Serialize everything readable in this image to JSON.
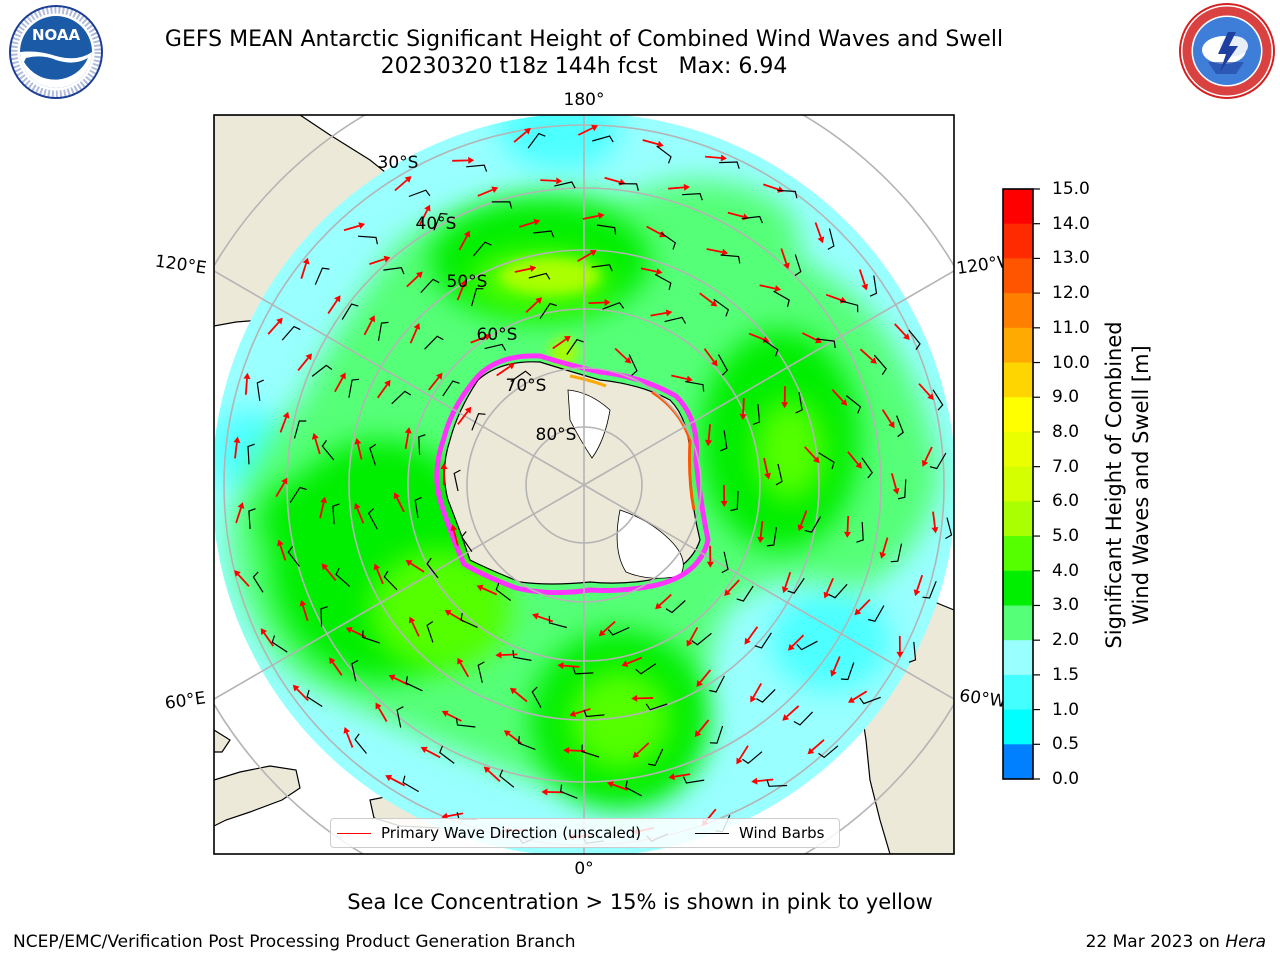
{
  "header": {
    "title_line1": "GEFS MEAN Antarctic Significant Height of Combined Wind Waves and Swell",
    "title_line2": "20230320 t18z 144h fcst   Max: 6.94"
  },
  "map": {
    "longitude_labels": {
      "top": "180°",
      "bottom": "0°",
      "upper_left": "120°E",
      "upper_right": "120°W",
      "lower_left": "60°E",
      "lower_right": "60°W"
    },
    "latitude_labels": [
      "30°S",
      "40°S",
      "50°S",
      "60°S",
      "70°S",
      "80°S"
    ],
    "legend": {
      "wave_direction": "Primary Wave Direction (unscaled)",
      "wind_barbs": "Wind Barbs"
    },
    "colors": {
      "land": "#ede9d8",
      "wave_arrow": "#ff0000",
      "wind_barb": "#000000",
      "sea_ice_edge": "#ff33ff",
      "graticule": "#b4b4b4"
    }
  },
  "colorbar": {
    "label_line1": "Significant Height of Combined",
    "label_line2": "Wind Waves and Swell [m]",
    "ticks": [
      "15.0",
      "14.0",
      "13.0",
      "12.0",
      "11.0",
      "10.0",
      "9.0",
      "8.0",
      "7.0",
      "6.0",
      "5.0",
      "4.0",
      "3.0",
      "2.0",
      "1.5",
      "1.0",
      "0.5",
      "0.0"
    ],
    "colors": [
      "#ff0000",
      "#ff2a00",
      "#ff5500",
      "#ff8000",
      "#ffaa00",
      "#ffd500",
      "#ffff00",
      "#eaff00",
      "#d4ff00",
      "#aaff00",
      "#55ff00",
      "#00ee00",
      "#55ff77",
      "#99ffff",
      "#44ffff",
      "#00ffff",
      "#0080ff",
      "#0000ff"
    ]
  },
  "footer": {
    "note": "Sea Ice Concentration > 15% is shown in pink to yellow",
    "producer": "NCEP/EMC/Verification Post Processing Product Generation Branch",
    "date": "22 Mar 2023 on",
    "machine": "Hera"
  }
}
